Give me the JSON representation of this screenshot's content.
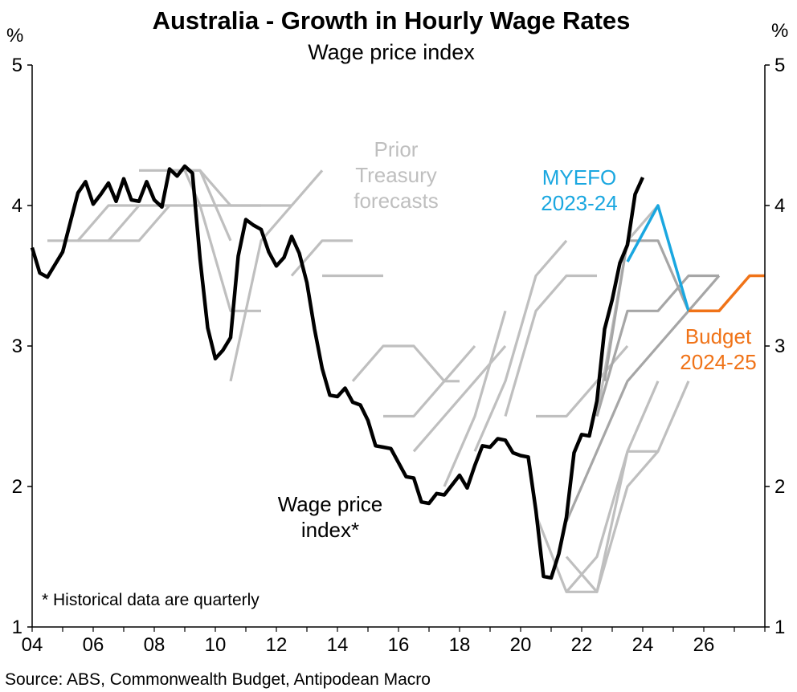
{
  "chart_data": {
    "type": "line",
    "title": "Australia - Growth in Hourly Wage Rates",
    "subtitle": "Wage price index",
    "ylabel_left": "%",
    "ylabel_right": "%",
    "ylim": [
      1,
      5
    ],
    "yticks": [
      "1",
      "2",
      "3",
      "4",
      "5"
    ],
    "xlim": [
      2004,
      2028
    ],
    "xticks": [
      {
        "x": 2004,
        "label": "04"
      },
      {
        "x": 2006,
        "label": "06"
      },
      {
        "x": 2008,
        "label": "08"
      },
      {
        "x": 2010,
        "label": "10"
      },
      {
        "x": 2012,
        "label": "12"
      },
      {
        "x": 2014,
        "label": "14"
      },
      {
        "x": 2016,
        "label": "16"
      },
      {
        "x": 2018,
        "label": "18"
      },
      {
        "x": 2020,
        "label": "20"
      },
      {
        "x": 2022,
        "label": "22"
      },
      {
        "x": 2024,
        "label": "24"
      },
      {
        "x": 2026,
        "label": "26"
      }
    ],
    "colors": {
      "wpi": "#000000",
      "prior_light": "#bfbfbf",
      "prior_dark": "#a6a6a6",
      "myefo": "#1aa7e0",
      "budget": "#f07318"
    },
    "series": [
      {
        "key": "wpi",
        "name": "Wage price index*",
        "x": [
          2004.0,
          2004.25,
          2004.5,
          2004.75,
          2005.0,
          2005.25,
          2005.5,
          2005.75,
          2006.0,
          2006.25,
          2006.5,
          2006.75,
          2007.0,
          2007.25,
          2007.5,
          2007.75,
          2008.0,
          2008.25,
          2008.5,
          2008.75,
          2009.0,
          2009.25,
          2009.5,
          2009.75,
          2010.0,
          2010.25,
          2010.5,
          2010.75,
          2011.0,
          2011.25,
          2011.5,
          2011.75,
          2012.0,
          2012.25,
          2012.5,
          2012.75,
          2013.0,
          2013.25,
          2013.5,
          2013.75,
          2014.0,
          2014.25,
          2014.5,
          2014.75,
          2015.0,
          2015.25,
          2015.5,
          2015.75,
          2016.0,
          2016.25,
          2016.5,
          2016.75,
          2017.0,
          2017.25,
          2017.5,
          2017.75,
          2018.0,
          2018.25,
          2018.5,
          2018.75,
          2019.0,
          2019.25,
          2019.5,
          2019.75,
          2020.0,
          2020.25,
          2020.5,
          2020.75,
          2021.0,
          2021.25,
          2021.5,
          2021.75,
          2022.0,
          2022.25,
          2022.5,
          2022.75,
          2023.0,
          2023.25,
          2023.5,
          2023.75,
          2024.0
        ],
        "values": [
          3.7,
          3.52,
          3.49,
          3.58,
          3.67,
          3.88,
          4.09,
          4.17,
          4.01,
          4.08,
          4.16,
          4.03,
          4.19,
          4.04,
          4.03,
          4.17,
          4.04,
          3.99,
          4.26,
          4.21,
          4.28,
          4.23,
          3.62,
          3.13,
          2.91,
          2.97,
          3.06,
          3.64,
          3.9,
          3.86,
          3.83,
          3.67,
          3.57,
          3.63,
          3.78,
          3.66,
          3.45,
          3.12,
          2.84,
          2.65,
          2.64,
          2.7,
          2.6,
          2.58,
          2.47,
          2.29,
          2.28,
          2.27,
          2.17,
          2.07,
          2.06,
          1.89,
          1.88,
          1.95,
          1.94,
          2.01,
          2.08,
          1.99,
          2.15,
          2.29,
          2.28,
          2.34,
          2.33,
          2.24,
          2.22,
          2.21,
          1.83,
          1.36,
          1.35,
          1.52,
          1.78,
          2.24,
          2.37,
          2.36,
          2.61,
          3.12,
          3.33,
          3.59,
          3.72,
          4.08,
          4.2
        ]
      },
      {
        "key": "myefo",
        "name": "MYEFO 2023-24",
        "x": [
          2023.5,
          2024.5,
          2025.5
        ],
        "values": [
          3.6,
          4.0,
          3.25
        ]
      },
      {
        "key": "budget",
        "name": "Budget 2024-25",
        "x": [
          2025.5,
          2026.5,
          2027.5,
          2028.0
        ],
        "values": [
          3.25,
          3.25,
          3.5,
          3.5
        ]
      },
      {
        "key": "prior",
        "shade": "prior_light",
        "x": [
          2004.5,
          2005.5,
          2006.5,
          2007.5
        ],
        "values": [
          3.75,
          3.75,
          4.0,
          4.0
        ]
      },
      {
        "key": "prior",
        "shade": "prior_light",
        "x": [
          2005.5,
          2006.5,
          2007.5,
          2008.5
        ],
        "values": [
          3.75,
          3.75,
          4.0,
          4.0
        ]
      },
      {
        "key": "prior",
        "shade": "prior_light",
        "x": [
          2006.5,
          2007.5,
          2008.5,
          2009.5
        ],
        "values": [
          3.75,
          3.75,
          4.0,
          4.0
        ]
      },
      {
        "key": "prior",
        "shade": "prior_light",
        "x": [
          2007.5,
          2008.5,
          2009.0,
          2009.5,
          2010.5
        ],
        "values": [
          4.25,
          4.25,
          4.25,
          4.25,
          3.75
        ]
      },
      {
        "key": "prior",
        "shade": "prior_light",
        "x": [
          2008.5,
          2009.0,
          2009.5,
          2010.5,
          2011.5
        ],
        "values": [
          4.25,
          4.25,
          4.25,
          4.0,
          4.0
        ]
      },
      {
        "key": "prior",
        "shade": "prior_light",
        "x": [
          2009.5,
          2010.5,
          2011.5,
          2012.5
        ],
        "values": [
          4.0,
          4.0,
          4.0,
          4.0
        ]
      },
      {
        "key": "prior",
        "shade": "prior_light",
        "x": [
          2009.0,
          2009.5,
          2010.5,
          2011.5
        ],
        "values": [
          4.25,
          4.0,
          3.25,
          3.25
        ]
      },
      {
        "key": "prior",
        "shade": "prior_light",
        "x": [
          2010.5,
          2011.5,
          2012.5,
          2013.5
        ],
        "values": [
          2.75,
          3.75,
          4.0,
          4.25
        ]
      },
      {
        "key": "prior",
        "shade": "prior_light",
        "x": [
          2012.5,
          2013.5,
          2014.5
        ],
        "values": [
          3.5,
          3.75,
          3.75
        ]
      },
      {
        "key": "prior",
        "shade": "prior_light",
        "x": [
          2013.5,
          2014.5,
          2015.5
        ],
        "values": [
          3.5,
          3.5,
          3.5
        ]
      },
      {
        "key": "prior",
        "shade": "prior_light",
        "x": [
          2014.5,
          2015.5,
          2016.5,
          2017.5,
          2018.0
        ],
        "values": [
          2.75,
          3.0,
          3.0,
          2.75,
          2.75
        ]
      },
      {
        "key": "prior",
        "shade": "prior_light",
        "x": [
          2015.5,
          2016.5,
          2017.5,
          2018.5
        ],
        "values": [
          2.5,
          2.5,
          2.75,
          3.0
        ]
      },
      {
        "key": "prior",
        "shade": "prior_light",
        "x": [
          2016.5,
          2017.5,
          2018.5,
          2019.5
        ],
        "values": [
          2.25,
          2.5,
          2.75,
          3.0
        ]
      },
      {
        "key": "prior",
        "shade": "prior_light",
        "x": [
          2017.5,
          2018.5,
          2019.5
        ],
        "values": [
          2.0,
          2.5,
          3.25
        ]
      },
      {
        "key": "prior",
        "shade": "prior_light",
        "x": [
          2018.5,
          2019.5,
          2020.5,
          2021.5
        ],
        "values": [
          2.25,
          2.75,
          3.5,
          3.75
        ]
      },
      {
        "key": "prior",
        "shade": "prior_light",
        "x": [
          2019.5,
          2020.5,
          2021.5,
          2022.5
        ],
        "values": [
          2.5,
          3.25,
          3.5,
          3.5
        ]
      },
      {
        "key": "prior",
        "shade": "prior_light",
        "x": [
          2020.5,
          2021.5,
          2022.5,
          2023.5
        ],
        "values": [
          2.5,
          2.5,
          2.75,
          3.0
        ]
      },
      {
        "key": "prior",
        "shade": "prior_light",
        "x": [
          2020.5,
          2021.5,
          2022.5,
          2023.5,
          2024.5
        ],
        "values": [
          1.8,
          1.25,
          1.25,
          2.25,
          2.25
        ]
      },
      {
        "key": "prior",
        "shade": "prior_light",
        "x": [
          2021.5,
          2022.5,
          2023.5,
          2024.5,
          2025.5
        ],
        "values": [
          1.5,
          1.25,
          2.0,
          2.25,
          2.75
        ]
      },
      {
        "key": "prior",
        "shade": "prior_light",
        "x": [
          2021.5,
          2022.5,
          2023.5,
          2024.5
        ],
        "values": [
          1.25,
          1.5,
          2.25,
          2.75
        ]
      },
      {
        "key": "prior",
        "shade": "prior_light",
        "x": [
          2022.5,
          2023.5,
          2024.5
        ],
        "values": [
          2.5,
          3.75,
          4.0
        ]
      },
      {
        "key": "prior",
        "shade": "prior_dark",
        "x": [
          2021.5,
          2022.5,
          2023.5,
          2024.5,
          2025.5,
          2026.5
        ],
        "values": [
          1.75,
          2.25,
          2.75,
          3.0,
          3.25,
          3.5
        ]
      },
      {
        "key": "prior",
        "shade": "prior_dark",
        "x": [
          2022.5,
          2023.5,
          2024.5,
          2025.5,
          2026.5
        ],
        "values": [
          2.5,
          3.25,
          3.25,
          3.5,
          3.5
        ]
      },
      {
        "key": "prior",
        "shade": "prior_dark",
        "x": [
          2022.75,
          2023.5,
          2024.5,
          2025.5
        ],
        "values": [
          2.75,
          3.75,
          3.75,
          3.25
        ]
      }
    ],
    "annotations": {
      "prior": [
        "Prior",
        "Treasury",
        "forecasts"
      ],
      "myefo": [
        "MYEFO",
        "2023-24"
      ],
      "budget": [
        "Budget",
        "2024-25"
      ],
      "wpi": [
        "Wage price",
        "index*"
      ],
      "note": "* Historical data are quarterly"
    },
    "source": "Source: ABS, Commonwealth Budget, Antipodean Macro"
  }
}
